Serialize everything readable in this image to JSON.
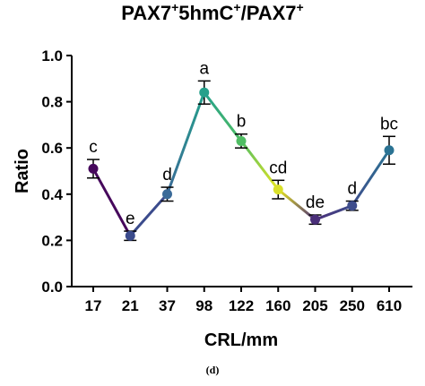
{
  "title": {
    "part1": "PAX7",
    "sup1": "+",
    "part2": "5hmC",
    "sup2": "+",
    "part3": "/PAX7",
    "sup3": "+"
  },
  "panel_label": "(d)",
  "chart_data": {
    "type": "line",
    "title": "PAX7+5hmC+/PAX7+",
    "xlabel": "CRL/mm",
    "ylabel": "Ratio",
    "ylim": [
      0,
      1.0
    ],
    "yticks": [
      "0.0",
      "0.2",
      "0.4",
      "0.6",
      "0.8",
      "1.0"
    ],
    "categories": [
      "17",
      "21",
      "37",
      "98",
      "122",
      "160",
      "205",
      "250",
      "610"
    ],
    "values": [
      0.51,
      0.22,
      0.4,
      0.84,
      0.63,
      0.42,
      0.29,
      0.35,
      0.59
    ],
    "errors": [
      0.04,
      0.02,
      0.03,
      0.05,
      0.03,
      0.04,
      0.02,
      0.02,
      0.06
    ],
    "point_colors": [
      "#46085c",
      "#3b4b8c",
      "#3a6a98",
      "#25a08b",
      "#4fbd63",
      "#d9e02a",
      "#4a2f79",
      "#3e4d8c",
      "#2b7393"
    ],
    "segment_gradients": [
      [
        "#46085c",
        "#46085c"
      ],
      [
        "#3b4b8c",
        "#3b4b8c"
      ],
      [
        "#3a6a98",
        "#25a08b"
      ],
      [
        "#25a08b",
        "#4fbd63"
      ],
      [
        "#4fbd63",
        "#e8e61f"
      ],
      [
        "#e8e61f",
        "#4a2f79"
      ],
      [
        "#4a2f79",
        "#3e4d8c"
      ],
      [
        "#3e4d8c",
        "#2b7393"
      ]
    ],
    "annotations": [
      "c",
      "e",
      "d",
      "a",
      "b",
      "cd",
      "de",
      "d",
      "bc"
    ],
    "grid": false,
    "legend": "none"
  }
}
